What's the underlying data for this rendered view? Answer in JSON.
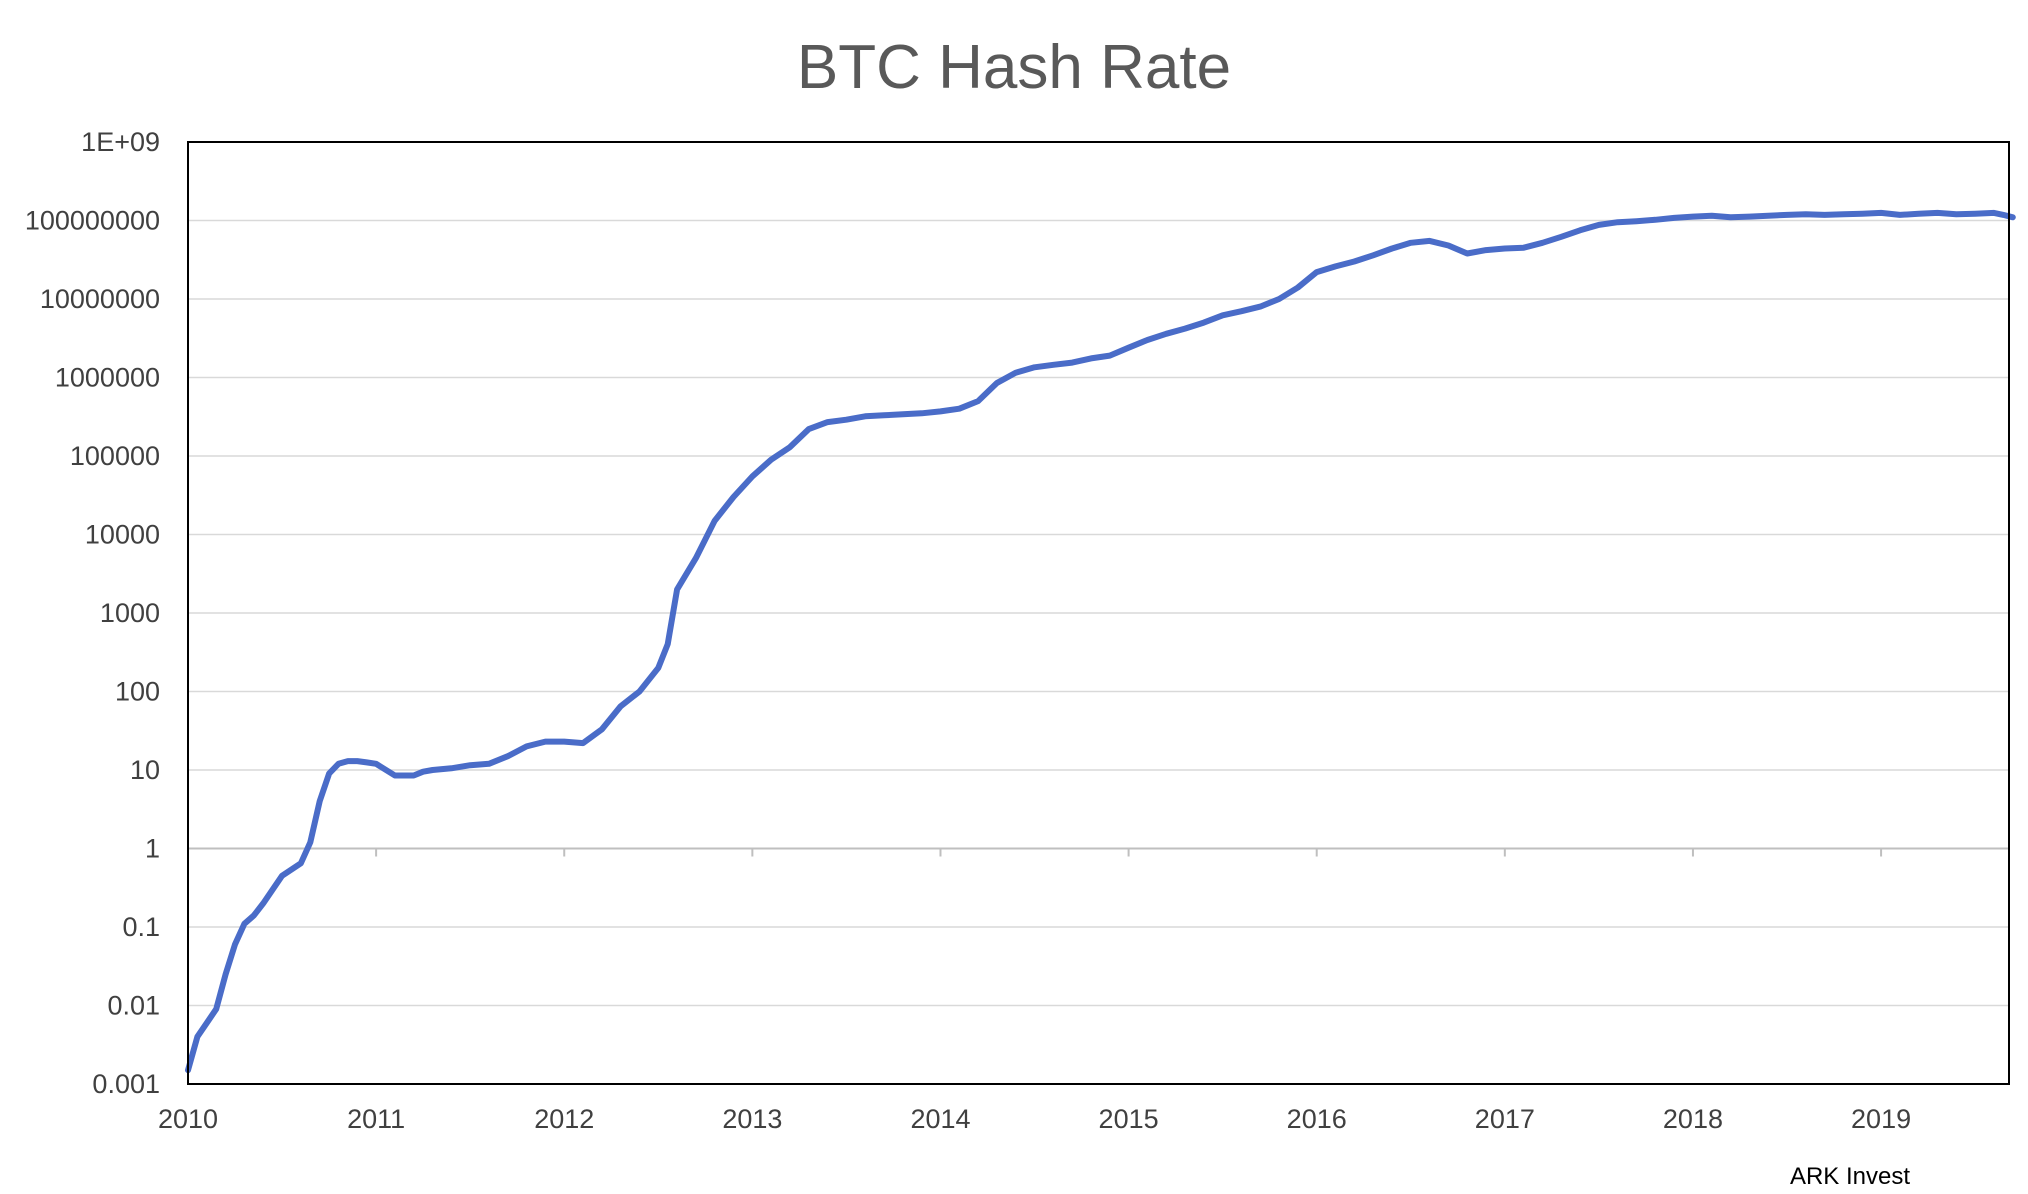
{
  "chart_data": {
    "type": "line",
    "title": "BTC Hash Rate",
    "xlabel": "",
    "ylabel": "",
    "source": "ARK Invest",
    "y_scale": "log",
    "ylim": [
      0.001,
      1000000000
    ],
    "xlim": [
      2010,
      2019.7
    ],
    "y_ticks": [
      {
        "value": 0.001,
        "label": "0.001"
      },
      {
        "value": 0.01,
        "label": "0.01"
      },
      {
        "value": 0.1,
        "label": "0.1"
      },
      {
        "value": 1,
        "label": "1"
      },
      {
        "value": 10,
        "label": "10"
      },
      {
        "value": 100,
        "label": "100"
      },
      {
        "value": 1000,
        "label": "1000"
      },
      {
        "value": 10000,
        "label": "10000"
      },
      {
        "value": 100000,
        "label": "100000"
      },
      {
        "value": 1000000,
        "label": "1000000"
      },
      {
        "value": 10000000,
        "label": "10000000"
      },
      {
        "value": 100000000,
        "label": "100000000"
      },
      {
        "value": 1000000000,
        "label": "1E+09"
      }
    ],
    "x_ticks": [
      {
        "value": 2010,
        "label": "2010"
      },
      {
        "value": 2011,
        "label": "2011"
      },
      {
        "value": 2012,
        "label": "2012"
      },
      {
        "value": 2013,
        "label": "2013"
      },
      {
        "value": 2014,
        "label": "2014"
      },
      {
        "value": 2015,
        "label": "2015"
      },
      {
        "value": 2016,
        "label": "2016"
      },
      {
        "value": 2017,
        "label": "2017"
      },
      {
        "value": 2018,
        "label": "2018"
      },
      {
        "value": 2019,
        "label": "2019"
      }
    ],
    "grid": "horizontal",
    "line_color": "#4a6cc8",
    "series": [
      {
        "x": [
          2010.0,
          2010.05,
          2010.1,
          2010.15,
          2010.2,
          2010.25,
          2010.3,
          2010.35,
          2010.4,
          2010.5,
          2010.6,
          2010.65,
          2010.7,
          2010.75,
          2010.8,
          2010.85,
          2010.9,
          2010.95,
          2011.0,
          2011.1,
          2011.2,
          2011.25,
          2011.3,
          2011.4,
          2011.5,
          2011.6,
          2011.7,
          2011.8,
          2011.9,
          2012.0,
          2012.1,
          2012.2,
          2012.3,
          2012.4,
          2012.5,
          2012.55,
          2012.6,
          2012.7,
          2012.8,
          2012.9,
          2013.0,
          2013.1,
          2013.2,
          2013.3,
          2013.4,
          2013.5,
          2013.6,
          2013.7,
          2013.8,
          2013.9,
          2014.0,
          2014.1,
          2014.2,
          2014.3,
          2014.4,
          2014.5,
          2014.6,
          2014.7,
          2014.8,
          2014.9,
          2015.0,
          2015.1,
          2015.2,
          2015.3,
          2015.4,
          2015.5,
          2015.6,
          2015.7,
          2015.8,
          2015.9,
          2016.0,
          2016.1,
          2016.2,
          2016.3,
          2016.4,
          2016.5,
          2016.6,
          2016.7,
          2016.8,
          2016.9,
          2017.0,
          2017.1,
          2017.2,
          2017.3,
          2017.4,
          2017.5,
          2017.6,
          2017.7,
          2017.8,
          2017.9,
          2018.0,
          2018.1,
          2018.2,
          2018.3,
          2018.4,
          2018.5,
          2018.6,
          2018.7,
          2018.8,
          2018.9,
          2019.0,
          2019.1,
          2019.2,
          2019.3,
          2019.4,
          2019.5,
          2019.6,
          2019.65,
          2019.7
        ],
        "y": [
          0.0015,
          0.004,
          0.006,
          0.009,
          0.025,
          0.06,
          0.11,
          0.14,
          0.2,
          0.45,
          0.65,
          1.2,
          4,
          9,
          12,
          13,
          13,
          12.5,
          12,
          8.5,
          8.5,
          9.5,
          10,
          10.5,
          11.5,
          12,
          15,
          20,
          23,
          23,
          22,
          33,
          65,
          100,
          200,
          400,
          2000,
          5000,
          15000,
          30000,
          55000,
          90000,
          130000,
          220000,
          270000,
          290000,
          320000,
          330000,
          340000,
          350000,
          370000,
          400000,
          500000,
          850000,
          1150000,
          1350000,
          1450000,
          1550000,
          1750000,
          1900000,
          2400000,
          3000000,
          3600000,
          4200000,
          5000000,
          6200000,
          7000000,
          8000000,
          10000000,
          14000000,
          22000000,
          26000000,
          30000000,
          36000000,
          44000000,
          52000000,
          55000000,
          48000000,
          38000000,
          42000000,
          44000000,
          45000000,
          52000000,
          62000000,
          75000000,
          88000000,
          95000000,
          98000000,
          102000000,
          108000000,
          112000000,
          115000000,
          110000000,
          112000000,
          115000000,
          118000000,
          120000000,
          118000000,
          120000000,
          122000000,
          125000000,
          118000000,
          122000000,
          125000000,
          120000000,
          122000000,
          125000000,
          118000000,
          110000000
        ]
      }
    ]
  }
}
